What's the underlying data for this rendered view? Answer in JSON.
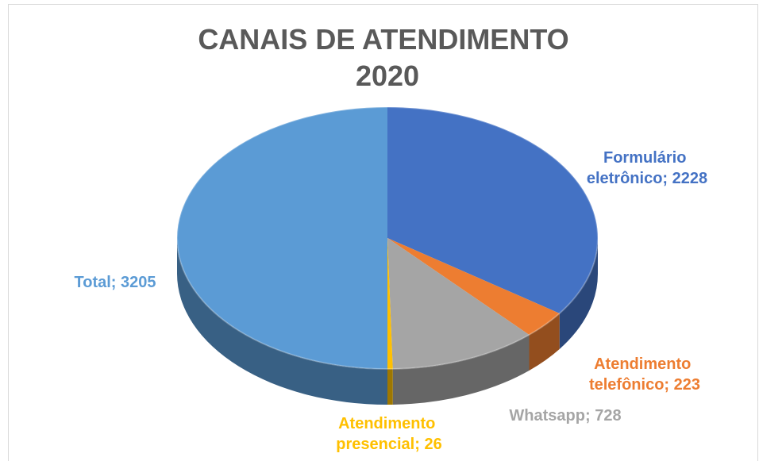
{
  "chart_data": {
    "type": "pie3d",
    "title": "CANAIS DE ATENDIMENTO 2020",
    "categories": [
      "Formulário eletrônico",
      "Atendimento telefônico",
      "Whatsapp",
      "Atendimento presencial",
      "Total"
    ],
    "values": [
      2228,
      223,
      728,
      26,
      3205
    ],
    "value_labels": [
      "Formulário eletrônico; 2228",
      "Atendimento telefônico; 223",
      "Whatsapp; 728",
      "Atendimento presencial; 26",
      "Total; 3205"
    ],
    "colors": [
      "#4472c4",
      "#ed7d31",
      "#a5a5a5",
      "#ffc000",
      "#5b9bd5"
    ]
  }
}
